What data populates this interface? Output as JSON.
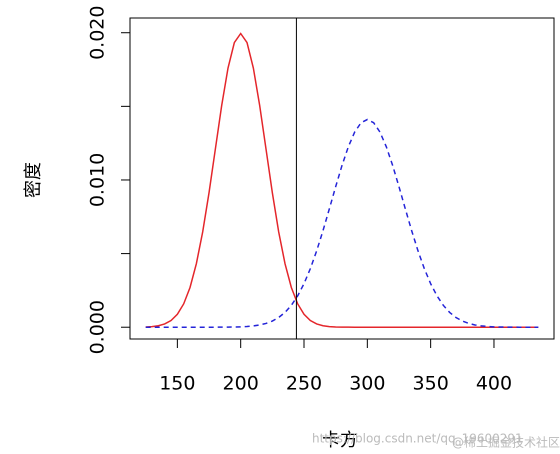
{
  "chart_data": {
    "type": "line",
    "xlabel": "卡方",
    "ylabel": "密度",
    "x": [
      125,
      130,
      135,
      140,
      145,
      150,
      155,
      160,
      165,
      170,
      175,
      180,
      185,
      190,
      195,
      200,
      205,
      210,
      215,
      220,
      225,
      230,
      235,
      240,
      245,
      250,
      255,
      260,
      265,
      270,
      275,
      280,
      285,
      290,
      295,
      300,
      305,
      310,
      315,
      320,
      325,
      330,
      335,
      340,
      345,
      350,
      355,
      360,
      365,
      370,
      375,
      380,
      385,
      390,
      395,
      400,
      405,
      410,
      415,
      420,
      425,
      430,
      435
    ],
    "series": [
      {
        "color": "#e4262b",
        "dash": false,
        "values": [
          1.76e-05,
          4.36e-05,
          0.000102,
          0.000222,
          0.000455,
          0.000876,
          0.001588,
          0.0027,
          0.004315,
          0.006476,
          0.009132,
          0.012099,
          0.015057,
          0.017603,
          0.019333,
          0.019947,
          0.019333,
          0.017603,
          0.015057,
          0.012099,
          0.009132,
          0.006476,
          0.004315,
          0.0027,
          0.001588,
          0.000876,
          0.000455,
          0.000222,
          0.000102,
          4.36e-05,
          1.76e-05,
          6.7e-06,
          2.4e-06,
          1e-06,
          0,
          0,
          0,
          0,
          0,
          0,
          0,
          0,
          0,
          0,
          0,
          0,
          0,
          0,
          0,
          0,
          0,
          0,
          0,
          0,
          0,
          0,
          0,
          0,
          0,
          0,
          0,
          0,
          0
        ]
      },
      {
        "color": "#2424d8",
        "dash": true,
        "values": [
          0,
          0,
          0,
          0,
          0,
          0,
          0,
          0,
          1e-07,
          3e-07,
          8e-07,
          1.7e-06,
          3.6e-06,
          7.3e-06,
          1.43e-05,
          2.72e-05,
          5.01e-05,
          8.93e-05,
          0.000154,
          0.000258,
          0.000419,
          0.00066,
          0.001006,
          0.001487,
          0.00213,
          0.002956,
          0.003979,
          0.005189,
          0.006559,
          0.008037,
          0.009543,
          0.010985,
          0.012254,
          0.01325,
          0.013886,
          0.014105,
          0.013886,
          0.01325,
          0.012254,
          0.010985,
          0.009543,
          0.008037,
          0.006559,
          0.005189,
          0.003979,
          0.002956,
          0.00213,
          0.001487,
          0.001006,
          0.00066,
          0.000419,
          0.000258,
          0.000154,
          8.93e-05,
          5.01e-05,
          2.72e-05,
          1.43e-05,
          7.3e-06,
          3.6e-06,
          1.7e-06,
          8e-07,
          3e-07,
          1e-07
        ]
      }
    ],
    "vline": 244,
    "xlim": [
      112.6,
      447.4
    ],
    "ylim": [
      -0.0008,
      0.021
    ],
    "xticks": [
      150,
      200,
      250,
      300,
      350,
      400
    ],
    "yticks": [
      {
        "value": 0,
        "label": "0.000"
      },
      {
        "value": 0.005,
        "label": null
      },
      {
        "value": 0.01,
        "label": "0.010"
      },
      {
        "value": 0.015,
        "label": null
      },
      {
        "value": 0.02,
        "label": "0.020"
      }
    ],
    "watermark": [
      "https://blog.csdn.net/qq_19600291",
      "@稀土掘金技术社区"
    ]
  }
}
